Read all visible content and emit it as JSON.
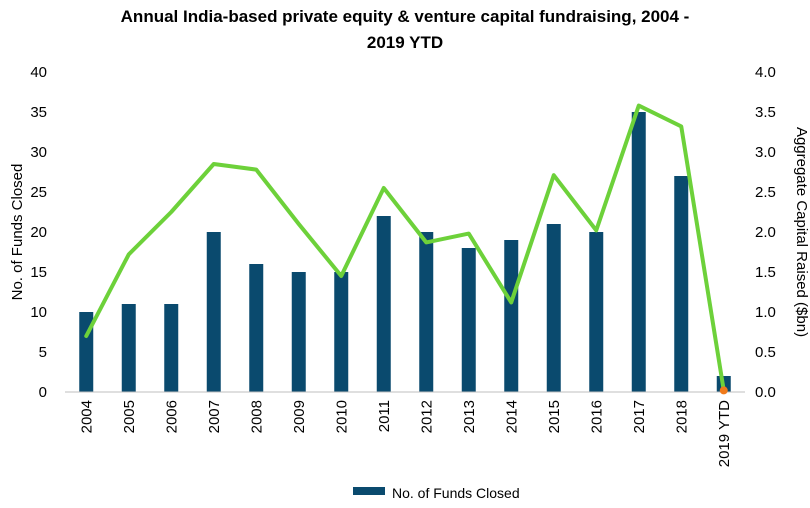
{
  "chart_data": {
    "type": "bar",
    "title_lines": [
      "Annual India-based private equity & venture capital fundraising, 2004 -",
      "2019 YTD"
    ],
    "categories": [
      "2004",
      "2005",
      "2006",
      "2007",
      "2008",
      "2009",
      "2010",
      "2011",
      "2012",
      "2013",
      "2014",
      "2015",
      "2016",
      "2017",
      "2018",
      "2019 YTD"
    ],
    "series": [
      {
        "name": "No. of Funds Closed",
        "type": "bar",
        "axis": "left",
        "color": "#0a4a6e",
        "values": [
          10,
          11,
          11,
          20,
          16,
          15,
          15,
          22,
          20,
          18,
          19,
          21,
          20,
          35,
          27,
          2
        ]
      },
      {
        "type": "line",
        "axis": "right",
        "color": "#6dd13a",
        "values": [
          0.7,
          1.72,
          2.25,
          2.85,
          2.78,
          2.1,
          1.45,
          2.55,
          1.87,
          1.98,
          1.12,
          2.71,
          2.02,
          3.58,
          3.32,
          0.02
        ]
      }
    ],
    "ylabel": "No. of Funds Closed",
    "ylabel_right": "Aggregate Capital Raised ($bn)",
    "ylim": [
      0,
      40
    ],
    "ylim_right": [
      0,
      4
    ],
    "yticks": [
      "0",
      "5",
      "10",
      "15",
      "20",
      "25",
      "30",
      "35",
      "40"
    ],
    "yticks_right": [
      "0.0",
      "0.5",
      "1.0",
      "1.5",
      "2.0",
      "2.5",
      "3.0",
      "3.5",
      "4.0"
    ],
    "marker_color": "#f07a1a",
    "legend_position": "bottom",
    "grid": false
  }
}
